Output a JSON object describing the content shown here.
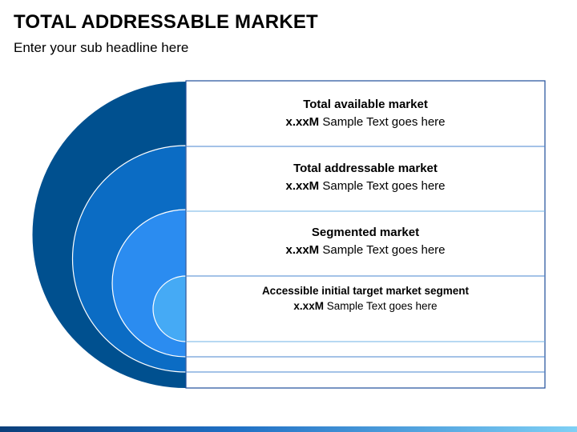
{
  "header": {
    "title": "TOTAL ADDRESSABLE MARKET",
    "subtitle": "Enter your sub headline here"
  },
  "segments": [
    {
      "label": "Total available market",
      "value": "x.xxM",
      "text": "Sample Text goes here",
      "color": "#00508f"
    },
    {
      "label": "Total addressable market",
      "value": "x.xxM",
      "text": "Sample Text goes here",
      "color": "#0b6cc4"
    },
    {
      "label": "Segmented market",
      "value": "x.xxM",
      "text": "Sample Text goes here",
      "color": "#2b8cf0"
    },
    {
      "label": "Accessible initial target market segment",
      "value": "x.xxM",
      "text": "Sample Text goes here",
      "color": "#45aaf5"
    }
  ],
  "colors": {
    "box_border": "#1f4e99",
    "divider": "#6fb3e6",
    "footer_bar": "#1f6fc4"
  }
}
